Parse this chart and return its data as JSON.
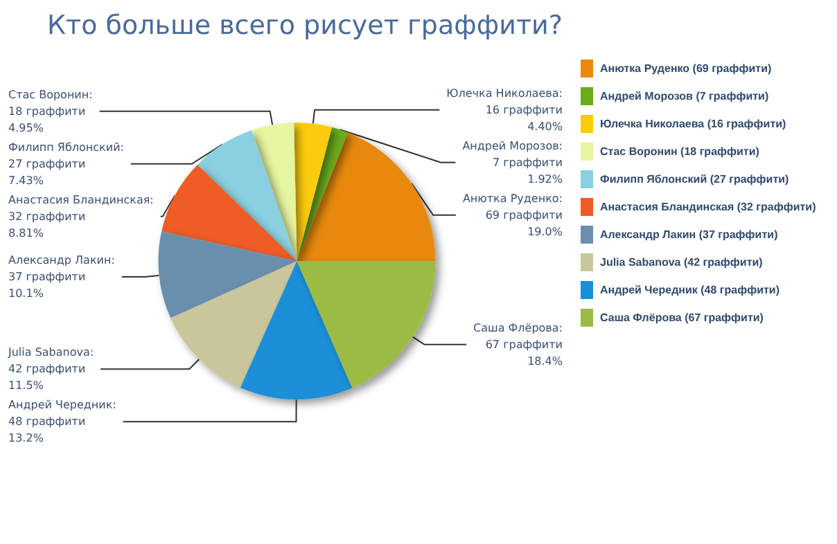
{
  "chart_data": {
    "type": "pie",
    "title": "Кто больше всего рисует граффити?",
    "categories": [
      "Анютка Руденко (69 граффити)",
      "Андрей Морозов (7 граффити)",
      "Юлечка Николаева (16 граффити)",
      "Стас Воронин (18 граффити)",
      "Филипп Яблонский (27 граффити)",
      "Анастасия Бландинская (32 граффити)",
      "Александр Лакин (37 граффити)",
      "Julia Sabanova (42 граффити)",
      "Андрей Чередник (48 граффити)",
      "Саша Флёрова (67 граффити)"
    ],
    "values": [
      69,
      7,
      16,
      18,
      27,
      32,
      37,
      42,
      48,
      67
    ],
    "value_labels": [
      "Анютка Руденко:\n69 граффити\n19.0%",
      "Андрей Морозов:\n7 граффити\n1.92%",
      "Юлечка Николаева:\n16 граффити\n4.40%",
      "Стас Воронин:\n18 граффити\n4.95%",
      "Филипп Яблонский:\n27 граффити\n7.43%",
      "Анастасия Бландинская:\n32 граффити\n8.81%",
      "Александр Лакин:\n37 граффити\n10.1%",
      "Julia Sabanova:\n42 граффити\n11.5%",
      "Андрей Чередник:\n48 граффити\n13.2%",
      "Саша Флёрова:\n67 граффити\n18.4%"
    ],
    "colors": [
      "#e8890c",
      "#6aab1c",
      "#fccb08",
      "#e6f5a0",
      "#8ad0e0",
      "#ef5b25",
      "#6b8fad",
      "#c9c69c",
      "#1b8fd6",
      "#9cbb45"
    ],
    "legend": "right"
  }
}
